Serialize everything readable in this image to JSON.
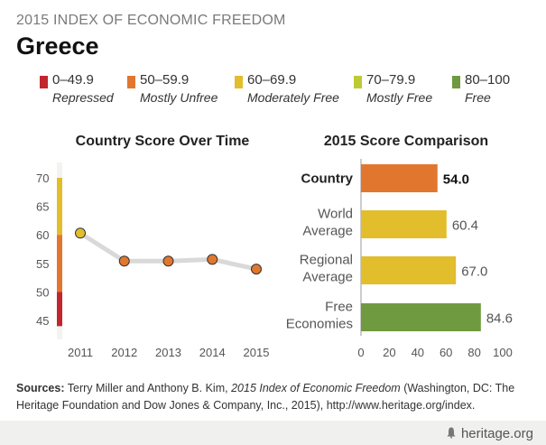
{
  "header": {
    "overline": "2015 INDEX OF ECONOMIC FREEDOM",
    "country": "Greece"
  },
  "legend": [
    {
      "range": "0–49.9",
      "label": "Repressed",
      "color": "#c1262e"
    },
    {
      "range": "50–59.9",
      "label": "Mostly Unfree",
      "color": "#e1772f"
    },
    {
      "range": "60–69.9",
      "label": "Moderately Free",
      "color": "#e2bd2c"
    },
    {
      "range": "70–79.9",
      "label": "Mostly Free",
      "color": "#bdcb33"
    },
    {
      "range": "80–100",
      "label": "Free",
      "color": "#6f9a3f"
    }
  ],
  "panels": {
    "left_title": "Country Score Over Time",
    "right_title": "2015 Score Comparison"
  },
  "sources": {
    "prefix": "Sources:",
    "authors": "Terry Miller and Anthony B. Kim,",
    "title": "2015 Index of Economic Freedom",
    "rest": "(Washington, DC: The Heritage Foundation and Dow Jones & Company, Inc., 2015), http://www.heritage.org/index."
  },
  "brand": "heritage.org",
  "chart_data": [
    {
      "type": "line",
      "title": "Country Score Over Time",
      "x": [
        "2011",
        "2012",
        "2013",
        "2014",
        "2015"
      ],
      "series": [
        {
          "values": [
            60.3,
            55.4,
            55.4,
            55.7,
            54.0
          ]
        }
      ],
      "ylim": [
        44,
        72
      ],
      "yticks": [
        45,
        50,
        55,
        60,
        65,
        70
      ],
      "band_colors": {
        "repressed": "#c1262e",
        "mostly_unfree": "#e1772f",
        "moderately_free": "#e2bd2c"
      },
      "line_color": "#d9d9d9",
      "marker_color": "#e1772f",
      "grid": false
    },
    {
      "type": "bar",
      "orientation": "horizontal",
      "title": "2015 Score Comparison",
      "categories": [
        "Country",
        "World Average",
        "Regional Average",
        "Free Economies"
      ],
      "category_lines": [
        [
          "Country"
        ],
        [
          "World",
          "Average"
        ],
        [
          "Regional",
          "Average"
        ],
        [
          "Free",
          "Economies"
        ]
      ],
      "values": [
        54.0,
        60.4,
        67.0,
        84.6
      ],
      "value_labels": [
        "54.0",
        "60.4",
        "67.0",
        "84.6"
      ],
      "colors": [
        "#e1772f",
        "#e2bd2c",
        "#e2bd2c",
        "#6f9a3f"
      ],
      "xlim": [
        0,
        100
      ],
      "xticks": [
        0,
        20,
        40,
        60,
        80,
        100
      ],
      "highlight_index": 0,
      "grid": false
    }
  ]
}
